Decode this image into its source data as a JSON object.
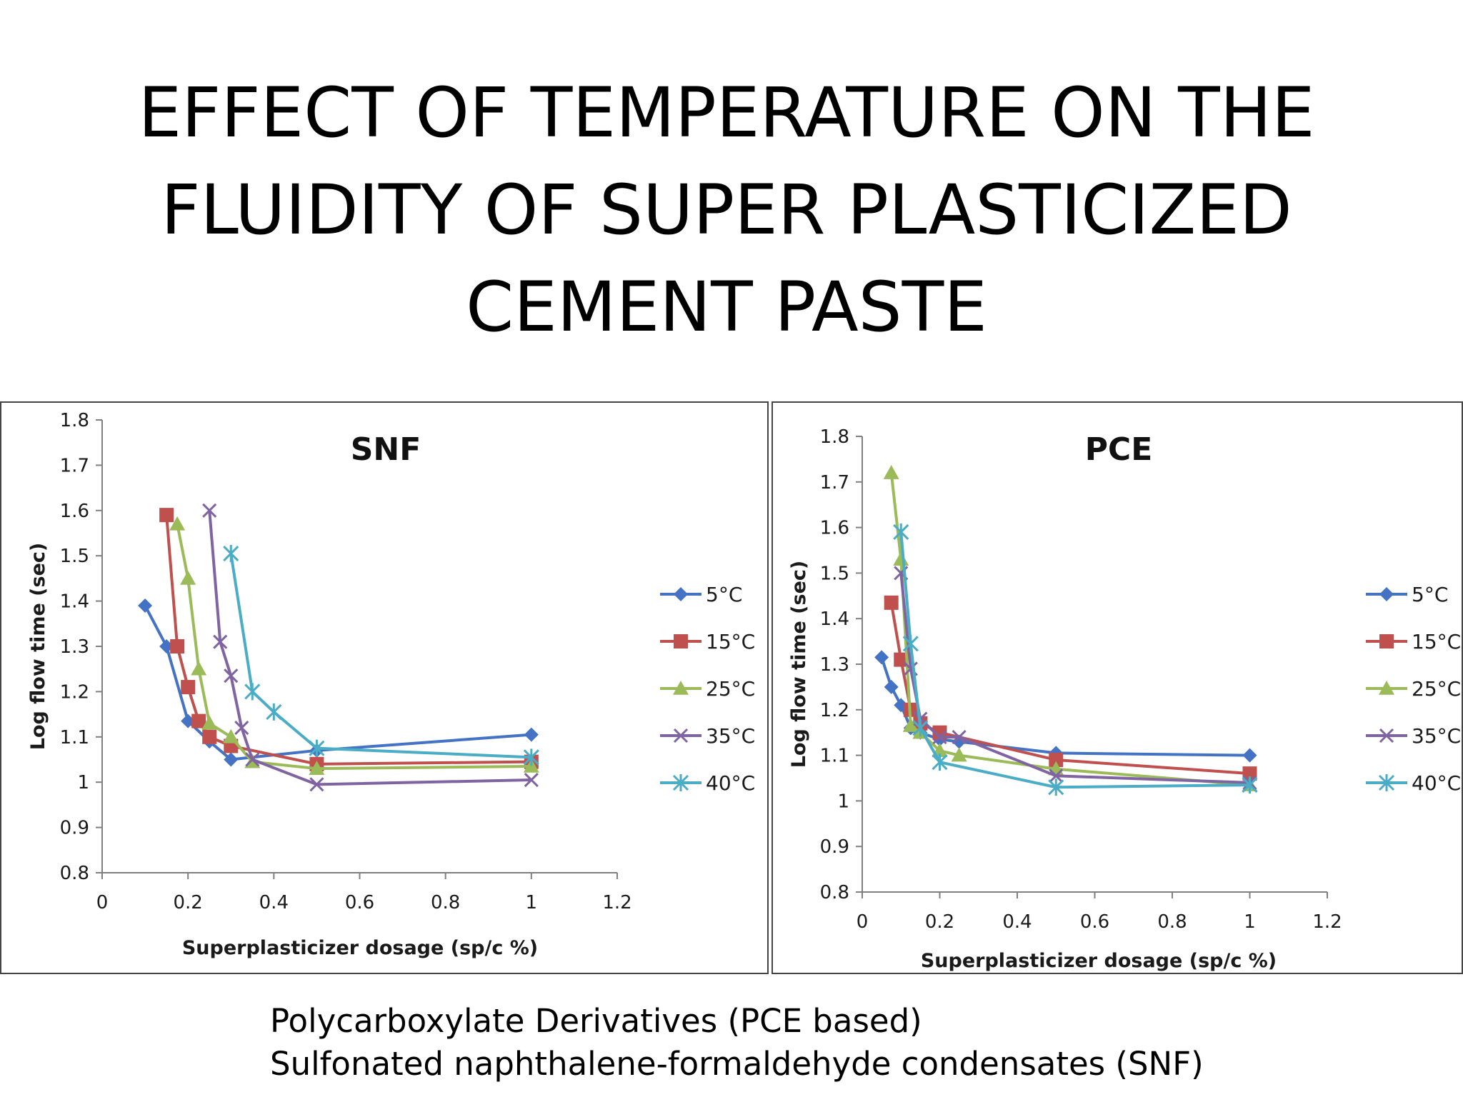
{
  "slide": {
    "title_lines": [
      "EFFECT OF TEMPERATURE ON THE",
      "FLUIDITY OF SUPER PLASTICIZED",
      "CEMENT PASTE"
    ],
    "notes": [
      "Polycarboxylate Derivatives (PCE based)",
      "Sulfonated naphthalene-formaldehyde condensates (SNF)"
    ]
  },
  "chart_data": [
    {
      "type": "line",
      "title": "SNF",
      "xlabel": "Superplasticizer dosage (sp/c %)",
      "ylabel": "Log flow time (sec)",
      "xlim": [
        0,
        1.2
      ],
      "ylim": [
        0.8,
        1.8
      ],
      "xticks": [
        "0",
        "0.2",
        "0.4",
        "0.6",
        "0.8",
        "1",
        "1.2"
      ],
      "yticks": [
        "0.8",
        "0.9",
        "1",
        "1.1",
        "1.2",
        "1.3",
        "1.4",
        "1.5",
        "1.6",
        "1.7",
        "1.8"
      ],
      "grid": false,
      "legend_position": "right",
      "series": [
        {
          "name": "5°C",
          "color": "#4472C4",
          "marker": "diamond",
          "x": [
            0.1,
            0.15,
            0.2,
            0.25,
            0.3,
            0.5,
            1.0
          ],
          "y": [
            1.39,
            1.3,
            1.135,
            1.09,
            1.05,
            1.07,
            1.105
          ]
        },
        {
          "name": "15°C",
          "color": "#C0504D",
          "marker": "square",
          "x": [
            0.15,
            0.175,
            0.2,
            0.225,
            0.25,
            0.3,
            0.5,
            1.0
          ],
          "y": [
            1.59,
            1.3,
            1.21,
            1.135,
            1.1,
            1.08,
            1.04,
            1.045
          ]
        },
        {
          "name": "25°C",
          "color": "#9BBB59",
          "marker": "triangle",
          "x": [
            0.175,
            0.2,
            0.225,
            0.25,
            0.3,
            0.35,
            0.5,
            1.0
          ],
          "y": [
            1.57,
            1.45,
            1.25,
            1.13,
            1.1,
            1.045,
            1.03,
            1.035
          ]
        },
        {
          "name": "35°C",
          "color": "#8064A2",
          "marker": "x",
          "x": [
            0.25,
            0.275,
            0.3,
            0.325,
            0.35,
            0.5,
            1.0
          ],
          "y": [
            1.6,
            1.31,
            1.235,
            1.12,
            1.05,
            0.995,
            1.005
          ]
        },
        {
          "name": "40°C",
          "color": "#4BACC6",
          "marker": "star",
          "x": [
            0.3,
            0.35,
            0.4,
            0.5,
            1.0
          ],
          "y": [
            1.505,
            1.2,
            1.155,
            1.075,
            1.055
          ]
        }
      ]
    },
    {
      "type": "line",
      "title": "PCE",
      "xlabel": "Superplasticizer dosage (sp/c  %)",
      "ylabel": "Log flow time (sec)",
      "xlim": [
        0,
        1.2
      ],
      "ylim": [
        0.8,
        1.8
      ],
      "xticks": [
        "0",
        "0.2",
        "0.4",
        "0.6",
        "0.8",
        "1",
        "1.2"
      ],
      "yticks": [
        "0.8",
        "0.9",
        "1",
        "1.1",
        "1.2",
        "1.3",
        "1.4",
        "1.5",
        "1.6",
        "1.7",
        "1.8"
      ],
      "grid": false,
      "legend_position": "right",
      "series": [
        {
          "name": "5°C",
          "color": "#4472C4",
          "marker": "diamond",
          "x": [
            0.05,
            0.075,
            0.1,
            0.125,
            0.15,
            0.2,
            0.25,
            0.5,
            1.0
          ],
          "y": [
            1.315,
            1.25,
            1.21,
            1.16,
            1.15,
            1.135,
            1.13,
            1.105,
            1.1
          ]
        },
        {
          "name": "15°C",
          "color": "#C0504D",
          "marker": "square",
          "x": [
            0.075,
            0.1,
            0.125,
            0.15,
            0.2,
            0.5,
            1.0
          ],
          "y": [
            1.435,
            1.31,
            1.2,
            1.17,
            1.15,
            1.09,
            1.06
          ]
        },
        {
          "name": "25°C",
          "color": "#9BBB59",
          "marker": "triangle",
          "x": [
            0.075,
            0.1,
            0.125,
            0.15,
            0.2,
            0.25,
            0.5,
            1.0
          ],
          "y": [
            1.72,
            1.53,
            1.165,
            1.15,
            1.11,
            1.1,
            1.07,
            1.035
          ]
        },
        {
          "name": "35°C",
          "color": "#8064A2",
          "marker": "x",
          "x": [
            0.1,
            0.125,
            0.15,
            0.2,
            0.25,
            0.5,
            1.0
          ],
          "y": [
            1.5,
            1.29,
            1.18,
            1.14,
            1.14,
            1.055,
            1.04
          ]
        },
        {
          "name": "40°C",
          "color": "#4BACC6",
          "marker": "star",
          "x": [
            0.1,
            0.125,
            0.15,
            0.2,
            0.5,
            1.0
          ],
          "y": [
            1.59,
            1.345,
            1.16,
            1.085,
            1.03,
            1.035
          ]
        }
      ]
    }
  ]
}
